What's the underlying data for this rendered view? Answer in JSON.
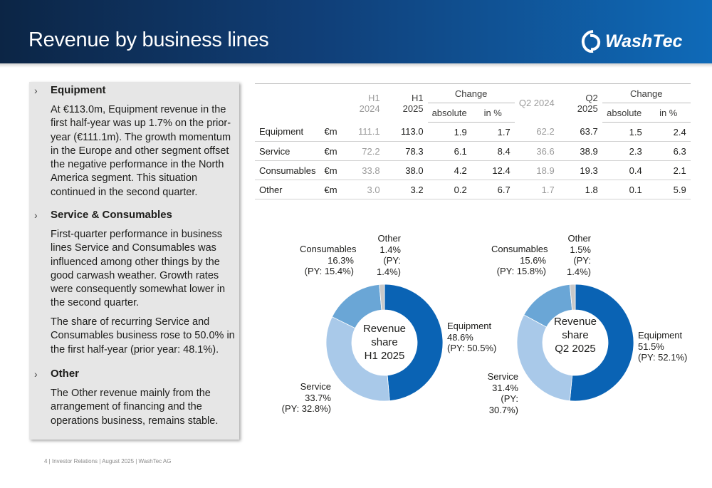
{
  "title": "Revenue by business lines",
  "logo": "WashTec",
  "left": {
    "sections": [
      {
        "bullet": "›",
        "heading": "Equipment",
        "paras": [
          "At €113.0m, Equipment revenue in the first half-year was up 1.7% on the prior-year (€111.1m). The growth momentum in the Europe and other segment offset the negative performance in the North America segment. This situation continued in the second quarter."
        ]
      },
      {
        "bullet": "›",
        "heading": "Service & Consumables",
        "paras": [
          "First-quarter performance in business lines Service and Consumables was influenced among other things by the good carwash weather. Growth rates were consequently somewhat lower in the second quarter.",
          "The share of recurring Service and Consumables business rose to 50.0% in the first half-year (prior year: 48.1%)."
        ]
      },
      {
        "bullet": "›",
        "heading": "Other",
        "paras": [
          "The Other revenue mainly from the arrangement of financing and the operations business, remains stable."
        ]
      }
    ]
  },
  "table": {
    "headers": {
      "h1_2024": "H1 2024",
      "h1_2025": "H1 2025",
      "change": "Change",
      "absolute": "absolute",
      "in_pct": "in %",
      "q2_2024": "Q2 2024",
      "q2_2025": "Q2 2025"
    },
    "rows": [
      {
        "name": "Equipment",
        "unit": "€m",
        "vals": [
          "111.1",
          "113.0",
          "1.9",
          "1.7",
          "62.2",
          "63.7",
          "1.5",
          "2.4"
        ]
      },
      {
        "name": "Service",
        "unit": "€m",
        "vals": [
          "72.2",
          "78.3",
          "6.1",
          "8.4",
          "36.6",
          "38.9",
          "2.3",
          "6.3"
        ]
      },
      {
        "name": "Consumables",
        "unit": "€m",
        "vals": [
          "33.8",
          "38.0",
          "4.2",
          "12.4",
          "18.9",
          "19.3",
          "0.4",
          "2.1"
        ]
      },
      {
        "name": "Other",
        "unit": "€m",
        "vals": [
          "3.0",
          "3.2",
          "0.2",
          "6.7",
          "1.7",
          "1.8",
          "0.1",
          "5.9"
        ]
      }
    ]
  },
  "colors": {
    "equipment": "#0a63b4",
    "service": "#a9c9e9",
    "consumables": "#6aa6d6",
    "other": "#c8c8c8"
  },
  "chart_data": [
    {
      "type": "pie",
      "title": "Revenue share H1 2025",
      "center_lines": [
        "Revenue",
        "share",
        "H1 2025"
      ],
      "slices": [
        {
          "name": "Equipment",
          "value": 48.6,
          "label": "48.6%",
          "py": "(PY: 50.5%)"
        },
        {
          "name": "Service",
          "value": 33.7,
          "label": "33.7%",
          "py": "(PY: 32.8%)"
        },
        {
          "name": "Consumables",
          "value": 16.3,
          "label": "16.3%",
          "py": "(PY: 15.4%)"
        },
        {
          "name": "Other",
          "value": 1.4,
          "label": "1.4%",
          "py": "(PY: 1.4%)"
        }
      ]
    },
    {
      "type": "pie",
      "title": "Revenue share Q2 2025",
      "center_lines": [
        "Revenue",
        "share",
        "Q2 2025"
      ],
      "slices": [
        {
          "name": "Equipment",
          "value": 51.5,
          "label": "51.5%",
          "py": "(PY: 52.1%)"
        },
        {
          "name": "Service",
          "value": 31.4,
          "label": "31.4%",
          "py": "(PY: 30.7%)"
        },
        {
          "name": "Consumables",
          "value": 15.6,
          "label": "15.6%",
          "py": "(PY: 15.8%)"
        },
        {
          "name": "Other",
          "value": 1.5,
          "label": "1.5%",
          "py": "(PY: 1.4%)"
        }
      ]
    }
  ],
  "footer": {
    "page": "4",
    "text": "Investor Relations | August 2025 | WashTec AG"
  }
}
